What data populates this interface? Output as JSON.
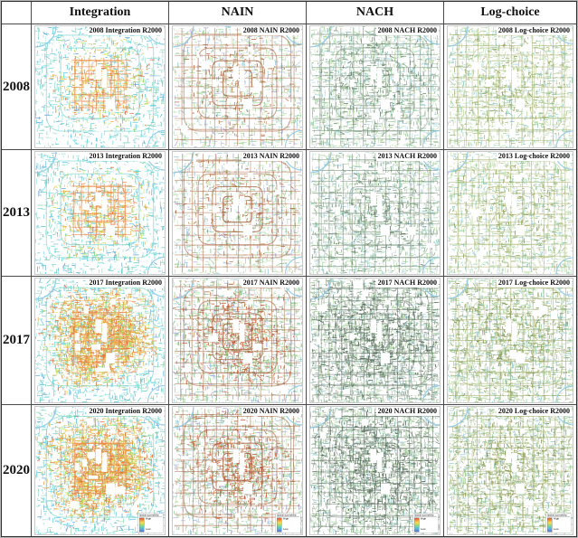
{
  "figure": {
    "columns": [
      "Integration",
      "NAIN",
      "NACH",
      "Log-choice"
    ],
    "rows": [
      "2008",
      "2013",
      "2017",
      "2020"
    ],
    "corner_label": ""
  },
  "legend": {
    "title": "Spatial accessibility",
    "high_label": "High",
    "low_label": "Low",
    "ramp_colors": [
      "#e0502a",
      "#f2973c",
      "#f5e04e",
      "#a8d96a",
      "#5fcfc0",
      "#57a8e0",
      "#5a6fd0"
    ]
  },
  "cells": [
    {
      "label": "2008 Integration R2000",
      "row": "2008",
      "column": "Integration",
      "style": "integration_early",
      "legend": false
    },
    {
      "label": "2008 NAIN R2000",
      "row": "2008",
      "column": "NAIN",
      "style": "nain_early",
      "legend": false
    },
    {
      "label": "2008 NACH R2000",
      "row": "2008",
      "column": "NACH",
      "style": "nach_early",
      "legend": false
    },
    {
      "label": "2008 Log-choice R2000",
      "row": "2008",
      "column": "Log-choice",
      "style": "logchoice_early",
      "legend": false
    },
    {
      "label": "2013 Integration R2000",
      "row": "2013",
      "column": "Integration",
      "style": "integration_early",
      "legend": false
    },
    {
      "label": "2013 NAIN R2000",
      "row": "2013",
      "column": "NAIN",
      "style": "nain_early",
      "legend": false
    },
    {
      "label": "2013 NACH R2000",
      "row": "2013",
      "column": "NACH",
      "style": "nach_early",
      "legend": false
    },
    {
      "label": "2013 Log-choice R2000",
      "row": "2013",
      "column": "Log-choice",
      "style": "logchoice_early",
      "legend": false
    },
    {
      "label": "2017 Integration R2000",
      "row": "2017",
      "column": "Integration",
      "style": "integration_late",
      "legend": false
    },
    {
      "label": "2017 NAIN R2000",
      "row": "2017",
      "column": "NAIN",
      "style": "nain_late",
      "legend": false
    },
    {
      "label": "2017 NACH R2000",
      "row": "2017",
      "column": "NACH",
      "style": "nach_late",
      "legend": false
    },
    {
      "label": "2017 Log-choice R2000",
      "row": "2017",
      "column": "Log-choice",
      "style": "logchoice_late",
      "legend": false
    },
    {
      "label": "2020 Integration R2000",
      "row": "2020",
      "column": "Integration",
      "style": "integration_late",
      "legend": true
    },
    {
      "label": "2020 NAIN R2000",
      "row": "2020",
      "column": "NAIN",
      "style": "nain_late",
      "legend": true
    },
    {
      "label": "2020 NACH R2000",
      "row": "2020",
      "column": "NACH",
      "style": "nach_late",
      "legend": true
    },
    {
      "label": "2020 Log-choice R2000",
      "row": "2020",
      "column": "Log-choice",
      "style": "logchoice_late",
      "legend": true
    }
  ],
  "map_styles": {
    "integration_early": {
      "base": [
        "#58cfc6",
        "#58cfc6",
        "#62d6de",
        "#55bee6",
        "#7fdac9",
        "#9ae4ea",
        "#6aa6dc",
        "#7fc9a8",
        "#8fd9d2"
      ],
      "accent": [
        "#a2dc66",
        "#cfe455",
        "#cfe455",
        "#f2a83e",
        "#f2a83e",
        "#e8632f"
      ],
      "ring": "#f0a850",
      "grid": "#e87838",
      "gridMode": "center",
      "density": 0.52,
      "blobs": [
        [
          0.5,
          0.48,
          1.6,
          0.42
        ]
      ],
      "rings": [
        [
          0.24,
          "ring",
          0.75
        ],
        [
          0.42,
          "ring",
          0.6
        ],
        [
          0.66,
          "#5ecbc4",
          0.55
        ],
        [
          0.9,
          "#5ecbc4",
          0.5
        ]
      ]
    },
    "integration_late": {
      "base": [
        "#58cfc6",
        "#62d6de",
        "#55bee6",
        "#7fdac9",
        "#8fd9a8",
        "#9ae4ea",
        "#6aa6dc",
        "#8cd4c2"
      ],
      "accent": [
        "#a2dc66",
        "#cfe455",
        "#f2a83e",
        "#f2a83e",
        "#e8903a",
        "#e8632f"
      ],
      "ring": "#f0a850",
      "grid": "#e87838",
      "gridMode": "center",
      "density": 0.66,
      "blobs": [
        [
          0.33,
          0.38,
          1.3,
          0.34
        ],
        [
          0.62,
          0.3,
          1.0,
          0.3
        ],
        [
          0.55,
          0.55,
          0.9,
          0.34
        ],
        [
          0.36,
          0.68,
          0.8,
          0.24
        ],
        [
          0.7,
          0.52,
          0.8,
          0.24
        ]
      ],
      "rings": [
        [
          0.24,
          "ring",
          0.75
        ],
        [
          0.42,
          "ring",
          0.65
        ],
        [
          0.66,
          "ring",
          0.45
        ],
        [
          0.9,
          "#5ecbc4",
          0.5
        ]
      ]
    },
    "nain_early": {
      "base": [
        "#a6d89a",
        "#b9e2a8",
        "#cde8ba",
        "#8fcfc2",
        "#9fc9e6",
        "#b2abdc",
        "#e2dec0",
        "#88c890",
        "#c2e0d2"
      ],
      "accent": [
        "#b06a3a",
        "#a85c32",
        "#c27a42",
        "#9ad088"
      ],
      "ring": "#a8603a",
      "grid": "#a8603a",
      "gridMode": "full",
      "density": 0.62,
      "blobs": [
        [
          0.5,
          0.45,
          0.7,
          0.5
        ]
      ],
      "rings": [
        [
          0.24,
          "ring",
          0.8
        ],
        [
          0.42,
          "ring",
          0.7
        ],
        [
          0.66,
          "ring",
          0.55
        ],
        [
          0.9,
          "ring",
          0.5
        ]
      ]
    },
    "nain_late": {
      "base": [
        "#9ed391",
        "#b2dfa2",
        "#c6e6b2",
        "#8acbbb",
        "#96c4e2",
        "#aaa4d6",
        "#d8d4b4",
        "#7fc288",
        "#b8dcc4"
      ],
      "accent": [
        "#b0633a",
        "#c2543a",
        "#d86a3a",
        "#8cc87e"
      ],
      "ring": "#a8603a",
      "grid": "#9e5a36",
      "gridMode": "full",
      "density": 0.8,
      "blobs": [
        [
          0.45,
          0.42,
          0.9,
          0.48
        ],
        [
          0.6,
          0.55,
          0.6,
          0.38
        ]
      ],
      "rings": [
        [
          0.24,
          "ring",
          0.8
        ],
        [
          0.42,
          "ring",
          0.7
        ],
        [
          0.66,
          "ring",
          0.55
        ],
        [
          0.9,
          "ring",
          0.5
        ]
      ]
    },
    "nach_early": {
      "base": [
        "#9bcf93",
        "#aedaa0",
        "#c2e2ae",
        "#84c8b6",
        "#9cd2dd",
        "#b8d8ea",
        "#d5e2bc",
        "#8aa88f",
        "#c8d8c8"
      ],
      "accent": [
        "#5f7a62",
        "#6d8a70",
        "#7c9a80"
      ],
      "ring": "#708a74",
      "grid": "#657f68",
      "gridMode": "full",
      "density": 0.92,
      "blobs": [
        [
          0.5,
          0.48,
          0.7,
          0.55
        ]
      ],
      "rings": [
        [
          0.24,
          "ring",
          0.5
        ],
        [
          0.42,
          "ring",
          0.5
        ],
        [
          0.66,
          "ring",
          0.45
        ],
        [
          0.9,
          "ring",
          0.4
        ]
      ]
    },
    "nach_late": {
      "base": [
        "#94c48d",
        "#a5d39a",
        "#b8dca8",
        "#7fbfae",
        "#94c8d4",
        "#9fae9f",
        "#8f9e8f",
        "#aab8aa",
        "#c2d2b8"
      ],
      "accent": [
        "#4f6352",
        "#5d7360",
        "#6c8270"
      ],
      "ring": "#5f7363",
      "grid": "#56695a",
      "gridMode": "full",
      "density": 1.15,
      "blobs": [
        [
          0.5,
          0.48,
          1.2,
          0.6
        ]
      ],
      "rings": [
        [
          0.24,
          "ring",
          0.5
        ],
        [
          0.42,
          "ring",
          0.5
        ],
        [
          0.66,
          "ring",
          0.45
        ],
        [
          0.9,
          "ring",
          0.4
        ]
      ]
    },
    "logchoice_early": {
      "base": [
        "#a5d39c",
        "#bce0ac",
        "#cfe7bc",
        "#8ecfc0",
        "#a2cfe2",
        "#c9d9a8",
        "#b4bd86",
        "#d8e2c8",
        "#88c8a8"
      ],
      "accent": [
        "#97a254",
        "#8a9a4e",
        "#a8b065"
      ],
      "ring": "#9fae62",
      "grid": "#9aa85a",
      "gridMode": "full",
      "density": 0.82,
      "blobs": [
        [
          0.5,
          0.47,
          0.5,
          0.52
        ]
      ],
      "rings": [
        [
          0.24,
          "ring",
          0.45
        ],
        [
          0.42,
          "ring",
          0.42
        ],
        [
          0.66,
          "ring",
          0.4
        ],
        [
          0.9,
          "ring",
          0.38
        ]
      ]
    },
    "logchoice_late": {
      "base": [
        "#9acb90",
        "#b0d9a0",
        "#c4e2b0",
        "#83c6b5",
        "#97c8dc",
        "#bdd09c",
        "#a8b07a",
        "#cfdcbc",
        "#7fc09d"
      ],
      "accent": [
        "#8a9650",
        "#7f8f4a",
        "#9aa45c"
      ],
      "ring": "#96a45c",
      "grid": "#8f9e52",
      "gridMode": "full",
      "density": 1.02,
      "blobs": [
        [
          0.5,
          0.47,
          0.8,
          0.58
        ]
      ],
      "rings": [
        [
          0.24,
          "ring",
          0.45
        ],
        [
          0.42,
          "ring",
          0.42
        ],
        [
          0.66,
          "ring",
          0.4
        ],
        [
          0.9,
          "ring",
          0.38
        ]
      ]
    }
  }
}
